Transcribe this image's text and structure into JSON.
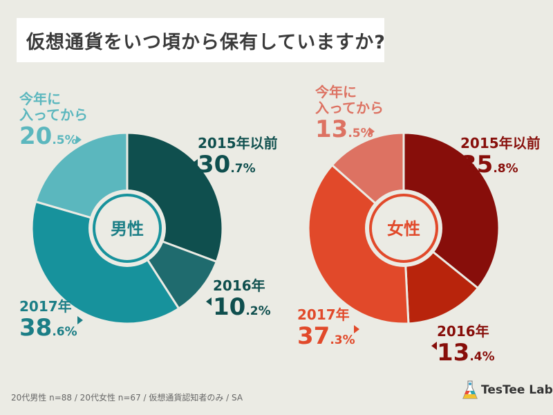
{
  "title": "仮想通貨をいつ頃から保有していますか?",
  "footnote": "20代男性 n=88 / 20代女性 n=67 / 仮想通貨認知者のみ / SA",
  "brand": "TesTee Lab.",
  "chart_data": [
    {
      "type": "pie",
      "center_label": "男性",
      "colors": [
        "#0f4f4e",
        "#1f6b6e",
        "#17929c",
        "#5bb7be"
      ],
      "slices": [
        {
          "label": "2015年以前",
          "value": 30.7,
          "int": "30",
          "dec": ".7"
        },
        {
          "label": "2016年",
          "value": 10.2,
          "int": "10",
          "dec": ".2"
        },
        {
          "label": "2017年",
          "value": 38.6,
          "int": "38",
          "dec": ".6"
        },
        {
          "label": "今年に\n入ってから",
          "value": 20.5,
          "int": "20",
          "dec": ".5"
        }
      ]
    },
    {
      "type": "pie",
      "center_label": "女性",
      "colors": [
        "#870e0a",
        "#b8240c",
        "#e1492a",
        "#dd7262"
      ],
      "slices": [
        {
          "label": "2015年以前",
          "value": 35.8,
          "int": "35",
          "dec": ".8"
        },
        {
          "label": "2016年",
          "value": 13.4,
          "int": "13",
          "dec": ".4"
        },
        {
          "label": "2017年",
          "value": 37.3,
          "int": "37",
          "dec": ".3"
        },
        {
          "label": "今年に\n入ってから",
          "value": 13.5,
          "int": "13",
          "dec": ".5"
        }
      ]
    }
  ]
}
